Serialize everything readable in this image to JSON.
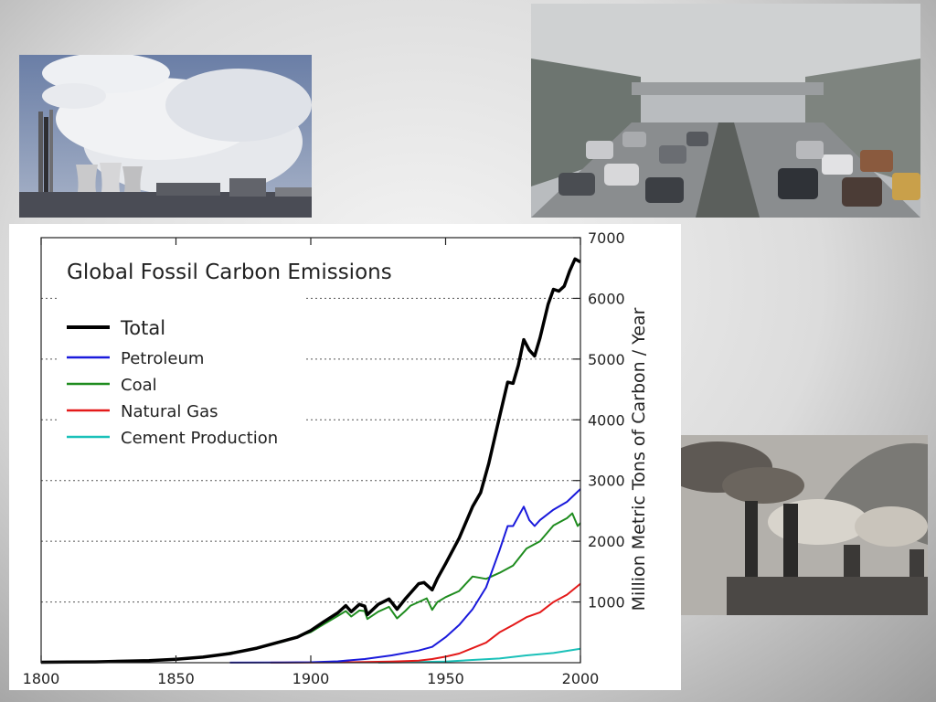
{
  "photos": [
    {
      "subject": "power plant cooling towers and smokestacks emitting white smoke"
    },
    {
      "subject": "smoggy multi-lane highway traffic jam"
    },
    {
      "subject": "industrial chimneys emitting dark smoke"
    }
  ],
  "chart_data": {
    "type": "line",
    "title": "Global Fossil Carbon Emissions",
    "xlabel": "",
    "ylabel": "Million Metric Tons of Carbon / Year",
    "xlim": [
      1800,
      2000
    ],
    "ylim": [
      0,
      7000
    ],
    "x_ticks": [
      "1800",
      "1850",
      "1900",
      "1950",
      "2000"
    ],
    "y_ticks": [
      "1000",
      "2000",
      "3000",
      "4000",
      "5000",
      "6000",
      "7000"
    ],
    "grid": "horizontal dotted",
    "y_axis_side": "right",
    "legend_position": "top-left",
    "series": [
      {
        "name": "Total",
        "color": "#000000",
        "points": [
          [
            1800,
            8
          ],
          [
            1810,
            10
          ],
          [
            1820,
            14
          ],
          [
            1830,
            24
          ],
          [
            1840,
            35
          ],
          [
            1850,
            55
          ],
          [
            1860,
            92
          ],
          [
            1870,
            150
          ],
          [
            1880,
            240
          ],
          [
            1890,
            360
          ],
          [
            1895,
            420
          ],
          [
            1900,
            530
          ],
          [
            1905,
            680
          ],
          [
            1910,
            820
          ],
          [
            1913,
            940
          ],
          [
            1915,
            840
          ],
          [
            1918,
            960
          ],
          [
            1920,
            930
          ],
          [
            1921,
            790
          ],
          [
            1925,
            960
          ],
          [
            1929,
            1050
          ],
          [
            1932,
            880
          ],
          [
            1935,
            1050
          ],
          [
            1937,
            1150
          ],
          [
            1940,
            1300
          ],
          [
            1942,
            1320
          ],
          [
            1945,
            1200
          ],
          [
            1947,
            1390
          ],
          [
            1950,
            1630
          ],
          [
            1955,
            2050
          ],
          [
            1960,
            2570
          ],
          [
            1963,
            2800
          ],
          [
            1966,
            3280
          ],
          [
            1970,
            4050
          ],
          [
            1973,
            4620
          ],
          [
            1975,
            4600
          ],
          [
            1977,
            4900
          ],
          [
            1979,
            5320
          ],
          [
            1981,
            5150
          ],
          [
            1983,
            5050
          ],
          [
            1985,
            5350
          ],
          [
            1988,
            5900
          ],
          [
            1990,
            6150
          ],
          [
            1992,
            6120
          ],
          [
            1994,
            6200
          ],
          [
            1996,
            6450
          ],
          [
            1998,
            6650
          ],
          [
            2000,
            6600
          ]
        ]
      },
      {
        "name": "Petroleum",
        "color": "#1a1adc",
        "points": [
          [
            1870,
            2
          ],
          [
            1890,
            5
          ],
          [
            1900,
            8
          ],
          [
            1910,
            22
          ],
          [
            1920,
            60
          ],
          [
            1930,
            120
          ],
          [
            1940,
            200
          ],
          [
            1945,
            260
          ],
          [
            1950,
            420
          ],
          [
            1955,
            620
          ],
          [
            1960,
            880
          ],
          [
            1965,
            1240
          ],
          [
            1970,
            1850
          ],
          [
            1973,
            2250
          ],
          [
            1975,
            2250
          ],
          [
            1979,
            2570
          ],
          [
            1981,
            2350
          ],
          [
            1983,
            2250
          ],
          [
            1985,
            2350
          ],
          [
            1990,
            2520
          ],
          [
            1995,
            2650
          ],
          [
            2000,
            2860
          ]
        ]
      },
      {
        "name": "Coal",
        "color": "#1f8c1f",
        "points": [
          [
            1800,
            8
          ],
          [
            1820,
            14
          ],
          [
            1840,
            35
          ],
          [
            1860,
            90
          ],
          [
            1880,
            235
          ],
          [
            1890,
            350
          ],
          [
            1900,
            505
          ],
          [
            1905,
            640
          ],
          [
            1910,
            770
          ],
          [
            1913,
            850
          ],
          [
            1915,
            760
          ],
          [
            1918,
            860
          ],
          [
            1920,
            850
          ],
          [
            1921,
            720
          ],
          [
            1925,
            840
          ],
          [
            1929,
            920
          ],
          [
            1932,
            730
          ],
          [
            1935,
            850
          ],
          [
            1937,
            940
          ],
          [
            1940,
            1000
          ],
          [
            1943,
            1060
          ],
          [
            1945,
            870
          ],
          [
            1947,
            1000
          ],
          [
            1950,
            1080
          ],
          [
            1955,
            1180
          ],
          [
            1960,
            1420
          ],
          [
            1965,
            1380
          ],
          [
            1970,
            1480
          ],
          [
            1975,
            1600
          ],
          [
            1980,
            1880
          ],
          [
            1985,
            2000
          ],
          [
            1990,
            2260
          ],
          [
            1995,
            2380
          ],
          [
            1997,
            2460
          ],
          [
            1999,
            2250
          ],
          [
            2000,
            2300
          ]
        ]
      },
      {
        "name": "Natural Gas",
        "color": "#e41a1a",
        "points": [
          [
            1885,
            1
          ],
          [
            1900,
            3
          ],
          [
            1920,
            10
          ],
          [
            1930,
            20
          ],
          [
            1940,
            35
          ],
          [
            1945,
            60
          ],
          [
            1950,
            100
          ],
          [
            1955,
            150
          ],
          [
            1960,
            240
          ],
          [
            1965,
            330
          ],
          [
            1970,
            500
          ],
          [
            1975,
            620
          ],
          [
            1980,
            750
          ],
          [
            1985,
            830
          ],
          [
            1990,
            1000
          ],
          [
            1995,
            1120
          ],
          [
            2000,
            1300
          ]
        ]
      },
      {
        "name": "Cement Production",
        "color": "#1bc1b9",
        "points": [
          [
            1925,
            2
          ],
          [
            1940,
            10
          ],
          [
            1950,
            20
          ],
          [
            1960,
            45
          ],
          [
            1970,
            70
          ],
          [
            1980,
            120
          ],
          [
            1990,
            160
          ],
          [
            2000,
            230
          ]
        ]
      }
    ]
  }
}
